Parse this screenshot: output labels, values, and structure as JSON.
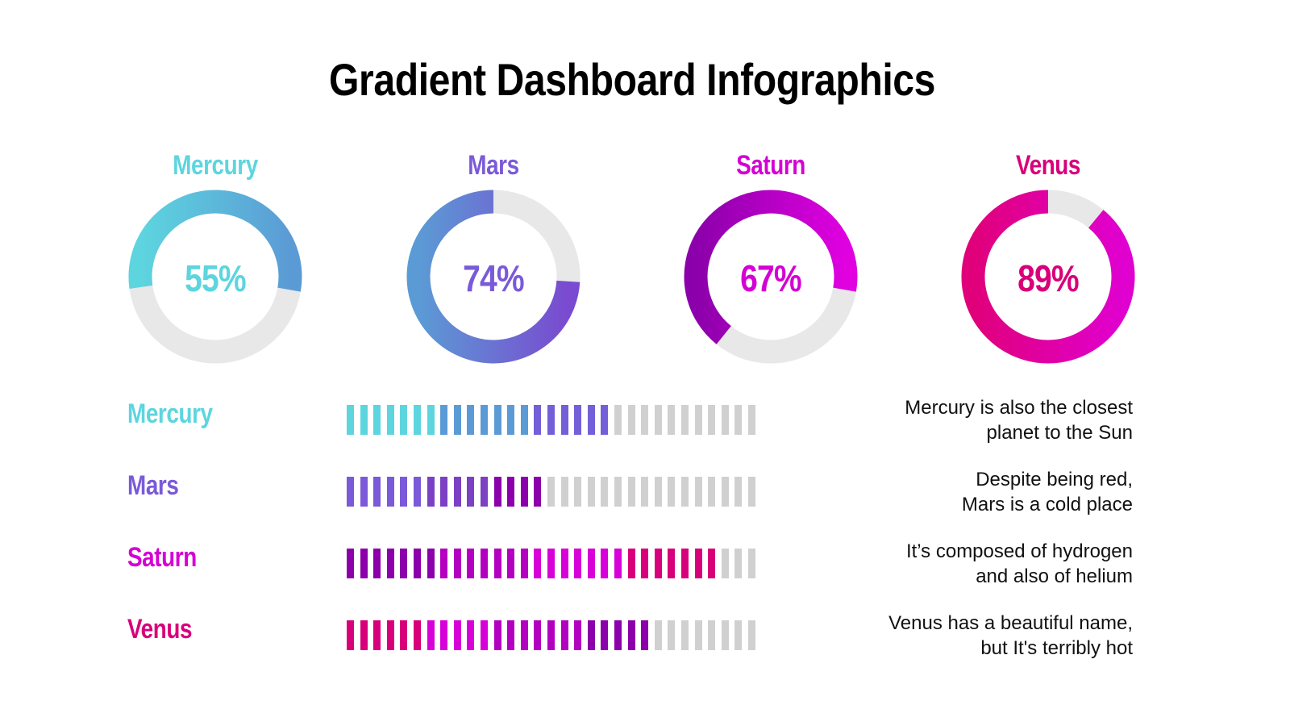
{
  "title": "Gradient Dashboard Infographics",
  "chart_data": [
    {
      "type": "donut",
      "items": [
        {
          "name": "Mercury",
          "value": 55,
          "label": "55%",
          "color": "#5dd5df",
          "gradient": [
            "#5dd5df",
            "#5b9bd5"
          ]
        },
        {
          "name": "Mars",
          "value": 74,
          "label": "74%",
          "color": "#7a5ad8",
          "gradient": [
            "#5b9bd5",
            "#7a4ad0"
          ]
        },
        {
          "name": "Saturn",
          "value": 67,
          "label": "67%",
          "color": "#d400d4",
          "gradient": [
            "#8b00aa",
            "#e000e0"
          ]
        },
        {
          "name": "Venus",
          "value": 89,
          "label": "89%",
          "color": "#d8007a",
          "gradient": [
            "#e0007a",
            "#e000d0"
          ]
        }
      ],
      "track_color": "#e8e8e8"
    },
    {
      "type": "segmented-bar",
      "total_segments": 31,
      "empty_color": "#d0d0d0",
      "rows": [
        {
          "name": "Mercury",
          "filled": 20,
          "color": "#5dd5df",
          "description": [
            "Mercury is also the closest",
            "planet to the Sun"
          ],
          "segments": [
            {
              "count": 7,
              "color": "#5dd5df"
            },
            {
              "count": 7,
              "color": "#5b9bd5"
            },
            {
              "count": 6,
              "color": "#7360d8"
            }
          ]
        },
        {
          "name": "Mars",
          "filled": 15,
          "color": "#7a5ad8",
          "description": [
            "Despite being red,",
            "Mars is a cold place"
          ],
          "segments": [
            {
              "count": 6,
              "color": "#7a5ad8"
            },
            {
              "count": 5,
              "color": "#7b40c4"
            },
            {
              "count": 4,
              "color": "#8b00aa"
            }
          ]
        },
        {
          "name": "Saturn",
          "filled": 28,
          "color": "#d400d4",
          "description": [
            "It’s composed of hydrogen",
            "and also of helium"
          ],
          "segments": [
            {
              "count": 7,
              "color": "#8b00aa"
            },
            {
              "count": 7,
              "color": "#b300c0"
            },
            {
              "count": 7,
              "color": "#d800d8"
            },
            {
              "count": 7,
              "color": "#d8007a"
            }
          ]
        },
        {
          "name": "Venus",
          "filled": 23,
          "color": "#d8007a",
          "description": [
            "Venus has a beautiful name,",
            "but It's terribly hot"
          ],
          "segments": [
            {
              "count": 6,
              "color": "#d8007a"
            },
            {
              "count": 5,
              "color": "#d800d8"
            },
            {
              "count": 7,
              "color": "#b300c0"
            },
            {
              "count": 5,
              "color": "#8b00aa"
            }
          ]
        }
      ]
    }
  ]
}
